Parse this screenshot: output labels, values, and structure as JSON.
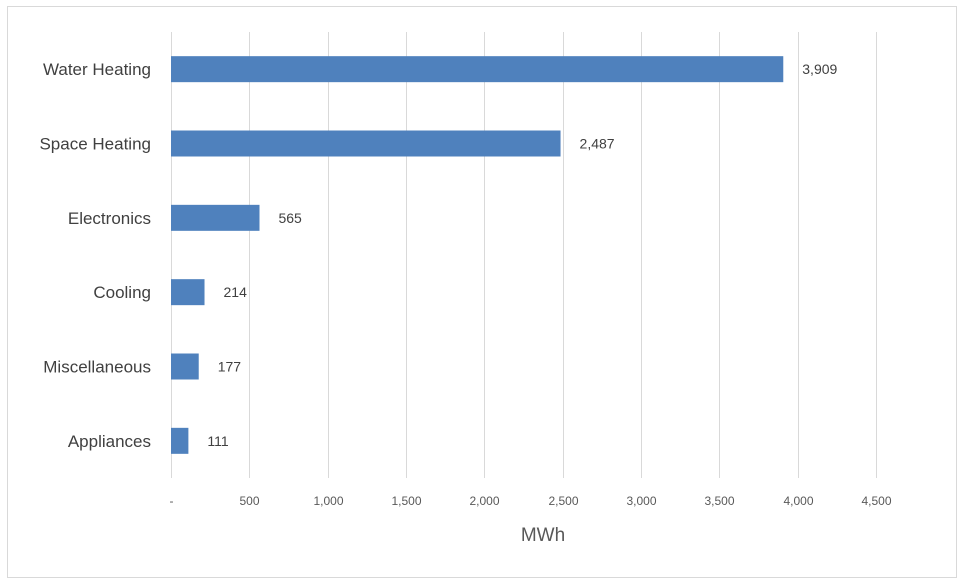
{
  "chart_data": {
    "type": "bar",
    "orientation": "horizontal",
    "categories": [
      "Water Heating",
      "Space Heating",
      "Electronics",
      "Cooling",
      "Miscellaneous",
      "Appliances"
    ],
    "values": [
      3909,
      2487,
      565,
      214,
      177,
      111
    ],
    "data_labels": [
      "3,909",
      "2,487",
      "565",
      "214",
      "177",
      "111"
    ],
    "xlabel": "MWh",
    "xlim": [
      0,
      4750
    ],
    "xticks": [
      0,
      500,
      1000,
      1500,
      2000,
      2500,
      3000,
      3500,
      4000,
      4500
    ],
    "xtick_labels": [
      "-",
      "500",
      "1,000",
      "1,500",
      "2,000",
      "2,500",
      "3,000",
      "3,500",
      "4,000",
      "4,500"
    ],
    "grid": "vertical",
    "legend": "none",
    "bar_color": "#4f81bd",
    "grid_color": "#d9d9d9"
  }
}
